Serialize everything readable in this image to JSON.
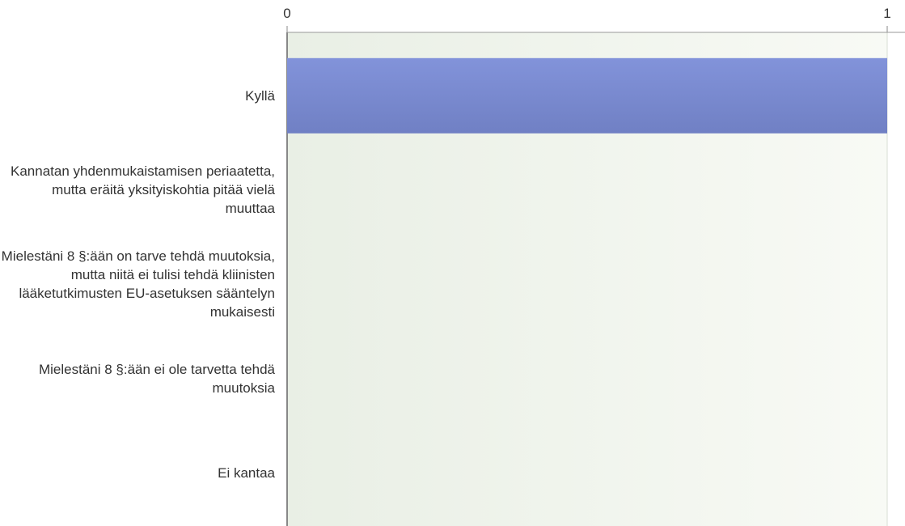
{
  "chart_data": {
    "type": "hbar",
    "categories": [
      "Kyllä",
      "Kannatan yhdenmukaistamisen periaatetta, mutta eräitä yksityiskohtia pitää vielä muuttaa",
      "Mielestäni 8 §:ään on tarve tehdä muutoksia, mutta niitä ei tulisi tehdä kliinisten lääketutkimusten EU-asetuksen sääntelyn mukaisesti",
      "Mielestäni 8 §:ään ei ole tarvetta tehdä muutoksia",
      "Ei kantaa"
    ],
    "values": [
      1,
      0,
      0,
      0,
      0
    ],
    "color": "#7b8ad0",
    "xlim": [
      0,
      1
    ],
    "xticks": [
      0,
      1
    ],
    "grid": true
  }
}
